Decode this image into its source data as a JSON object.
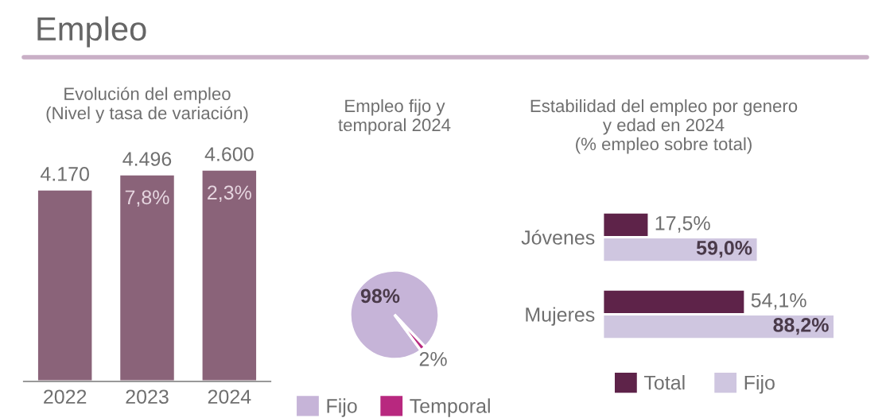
{
  "chart_data": [
    {
      "type": "bar",
      "title": "Evolución del empleo\n(Nivel y tasa de variación)",
      "categories": [
        "2022",
        "2023",
        "2024"
      ],
      "values": [
        4170,
        4496,
        4600
      ],
      "color": "#8a6379",
      "value_labels": [
        "4.170",
        "4.496",
        "4.600"
      ],
      "tick_labels": "x",
      "grid": false,
      "annotations": [
        "Empleo",
        {
          "text": "7,8%",
          "x": "2023",
          "y": 4496
        },
        {
          "text": "2,3%",
          "x": "2024",
          "y": 4600
        }
      ]
    },
    {
      "type": "pie",
      "title": "Empleo fijo y\ntemporal 2024",
      "categories": [
        "Fijo",
        "Temporal"
      ],
      "values": [
        98,
        2
      ],
      "colors": [
        "#c6b4d8",
        "#b8287f"
      ],
      "value_labels": [
        "98%",
        "2%"
      ],
      "legend": "bottom"
    },
    {
      "type": "bar",
      "orientation": "horizontal",
      "title": "Estabilidad del empleo por genero\ny edad en 2024\n(% empleo sobre total)",
      "categories": [
        "Jóvenes",
        "Mujeres"
      ],
      "tick_labels": "y",
      "grid": false,
      "legend": "bottom",
      "series": [
        {
          "name": "Total",
          "color": "#5e2349",
          "values": [
            17.5,
            54.1
          ],
          "value_labels": [
            "17,5%",
            "54,1%"
          ]
        },
        {
          "name": "Fijo",
          "color": "#cfc6e0",
          "values": [
            59.0,
            88.2
          ],
          "value_labels": [
            "59,0%",
            "88,2%"
          ]
        }
      ]
    }
  ]
}
